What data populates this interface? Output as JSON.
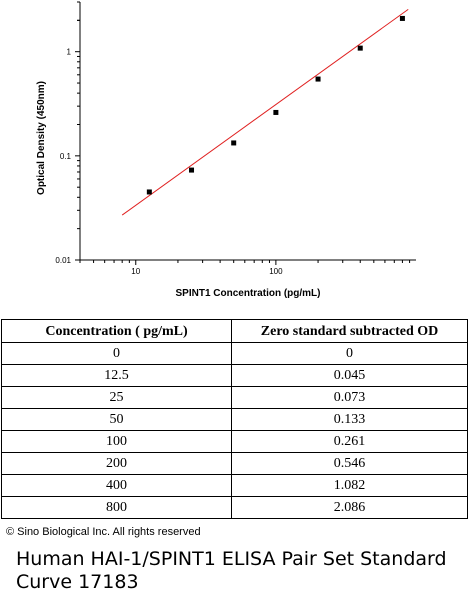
{
  "chart_data": {
    "type": "scatter",
    "title": "",
    "xlabel": "SPINT1 Concentration (pg/mL)",
    "ylabel": "Optical Density (450nm)",
    "x_scale": "log",
    "y_scale": "log",
    "xlim": [
      4,
      1000
    ],
    "ylim": [
      0.01,
      3
    ],
    "x_tick_labels": [
      "10",
      "100"
    ],
    "y_tick_labels": [
      "1",
      "0.1",
      "0.01"
    ],
    "grid": false,
    "series": [
      {
        "type": "scatter",
        "x": [
          12.5,
          25,
          50,
          100,
          200,
          400,
          800
        ],
        "y": [
          0.045,
          0.073,
          0.133,
          0.261,
          0.546,
          1.082,
          2.086
        ],
        "color": "#000000"
      },
      {
        "type": "line",
        "x": [
          8,
          880
        ],
        "y": [
          0.027,
          2.55
        ],
        "color": "#e02020"
      }
    ]
  },
  "table": {
    "headers": [
      "Concentration ( pg/mL)",
      "Zero standard subtracted OD"
    ],
    "rows": [
      [
        "0",
        "0"
      ],
      [
        "12.5",
        "0.045"
      ],
      [
        "25",
        "0.073"
      ],
      [
        "50",
        "0.133"
      ],
      [
        "100",
        "0.261"
      ],
      [
        "200",
        "0.546"
      ],
      [
        "400",
        "1.082"
      ],
      [
        "800",
        "2.086"
      ]
    ]
  },
  "copyright": "© Sino Biological Inc. All rights reserved",
  "caption": "Human HAI-1/SPINT1 ELISA Pair Set Standard Curve 17183"
}
